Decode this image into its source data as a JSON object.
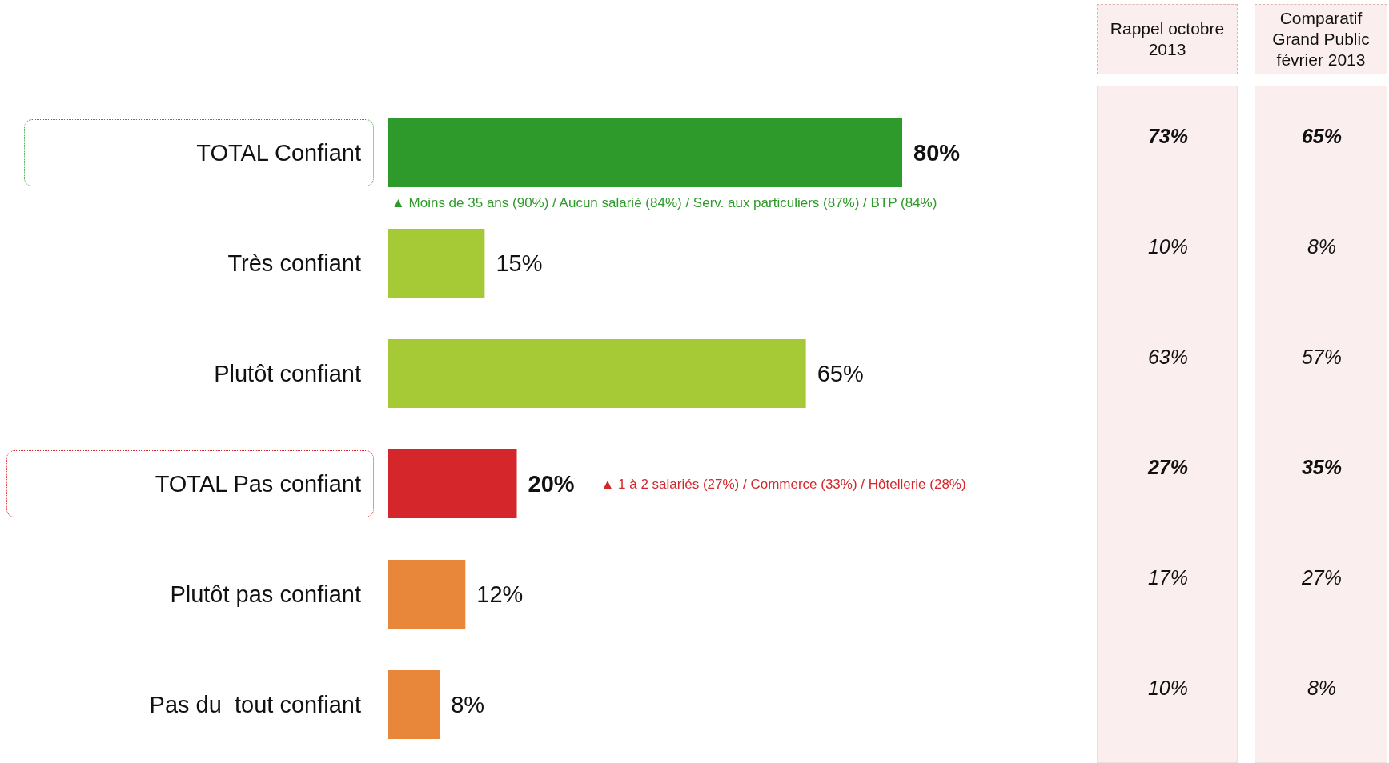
{
  "chart_data": [
    {
      "type": "bar",
      "orientation": "horizontal",
      "categories": [
        "TOTAL Confiant",
        "Très confiant",
        "Plutôt confiant",
        "TOTAL Pas confiant",
        "Plutôt pas confiant",
        "Pas du  tout confiant"
      ],
      "values": [
        80,
        15,
        65,
        20,
        12,
        8
      ],
      "colors": [
        "#2f9a2c",
        "#a6c936",
        "#a6c936",
        "#d4262b",
        "#e8873a",
        "#e8873a"
      ],
      "value_labels": [
        "80%",
        "15%",
        "65%",
        "20%",
        "12%",
        "8%"
      ],
      "annotations": [
        "▲ Moins de 35 ans (90%) / Aucun salarié (84%) / Serv. aux particuliers (87%) / BTP (84%)",
        "▲ 1 à 2 salariés (27%) / Commerce (33%) / Hôtellerie (28%)"
      ]
    },
    {
      "type": "other",
      "title": "Rappel octobre 2013",
      "annotations": [
        "73%",
        "10%",
        "63%",
        "27%",
        "17%",
        "10%"
      ]
    },
    {
      "type": "other",
      "title": "Comparatif Grand Public février 2013",
      "annotations": [
        "65%",
        "8%",
        "57%",
        "35%",
        "27%",
        "8%"
      ]
    }
  ]
}
